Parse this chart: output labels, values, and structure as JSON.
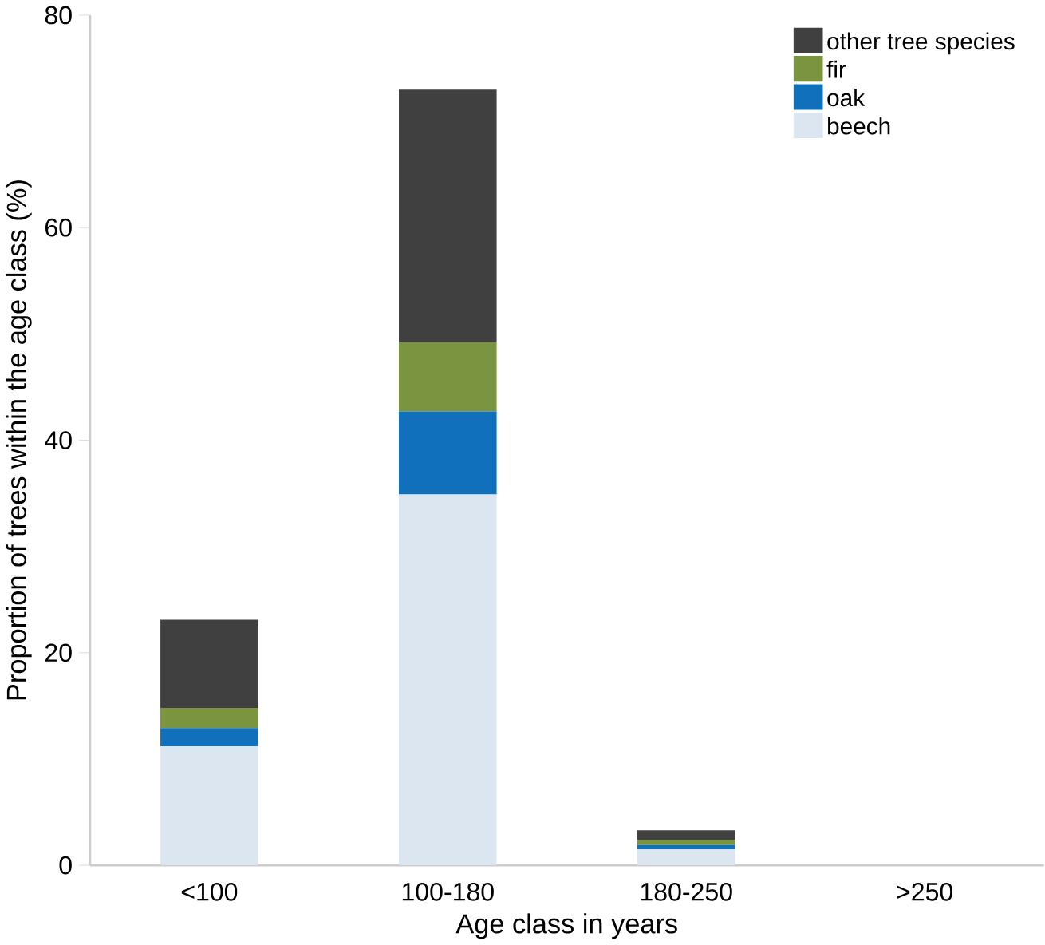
{
  "chart_data": {
    "type": "bar",
    "stacked": true,
    "xlabel": "Age class in years",
    "ylabel": "Proportion of trees within the age class (%)",
    "categories": [
      "<100",
      "100-180",
      "180-250",
      ">250"
    ],
    "series": [
      {
        "name": "beech",
        "color": "#dce6f0",
        "values": [
          11.2,
          34.9,
          1.5,
          0
        ]
      },
      {
        "name": "oak",
        "color": "#1170bb",
        "values": [
          1.7,
          7.8,
          0.4,
          0
        ]
      },
      {
        "name": "fir",
        "color": "#7a9440",
        "values": [
          1.9,
          6.5,
          0.5,
          0
        ]
      },
      {
        "name": "other tree species",
        "color": "#404040",
        "values": [
          8.3,
          23.8,
          0.9,
          0
        ]
      }
    ],
    "ylim": [
      0,
      80
    ],
    "yticks": [
      0,
      20,
      40,
      60,
      80
    ],
    "grid": false,
    "legend": "top right"
  }
}
